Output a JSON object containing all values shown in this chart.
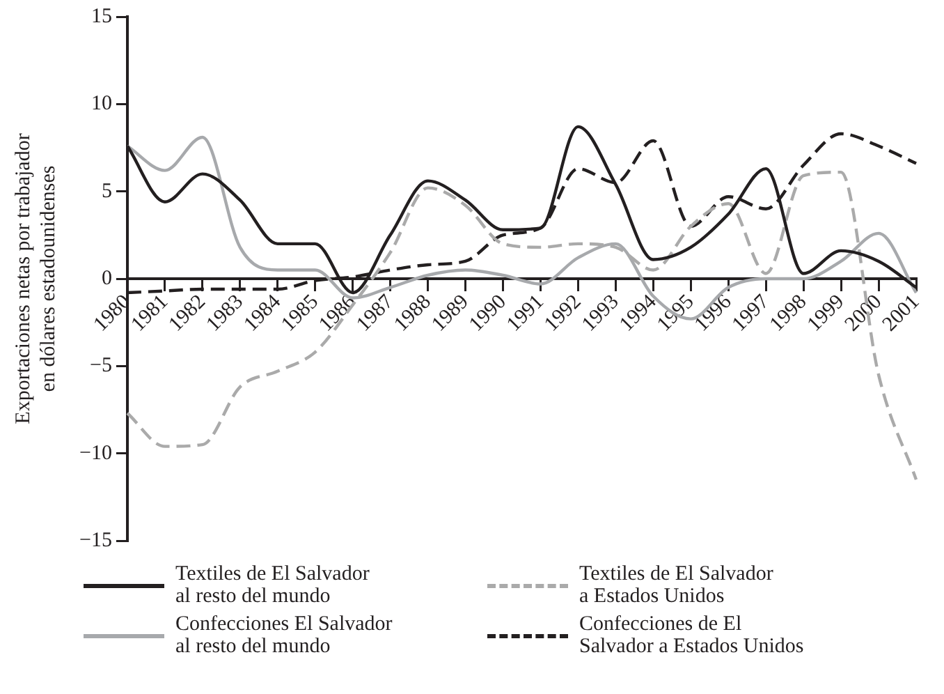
{
  "chart_data": {
    "type": "line",
    "ylabel": "Exportaciones netas por trabajador en dólares estadounidenses",
    "categories": [
      "1980",
      "1981",
      "1982",
      "1983",
      "1984",
      "1985",
      "1986",
      "1987",
      "1988",
      "1989",
      "1990",
      "1991",
      "1992",
      "1993",
      "1994",
      "1995",
      "1996",
      "1997",
      "1998",
      "1999",
      "2000",
      "2001"
    ],
    "series": [
      {
        "name": "Textiles de El Salvador al resto del mundo",
        "color": "#231f20",
        "line_style": "solid",
        "values": [
          7.6,
          4.4,
          6.0,
          4.5,
          2.0,
          2.0,
          -0.8,
          2.5,
          5.6,
          4.5,
          2.8,
          2.9,
          8.7,
          5.4,
          1.1,
          1.8,
          3.7,
          6.3,
          0.3,
          1.6,
          1.0,
          -0.5
        ]
      },
      {
        "name": "Textiles de El Salvador a Estados Unidos",
        "color": "#aaaaaa",
        "line_style": "dashed",
        "values": [
          -7.7,
          -9.6,
          -9.5,
          -6.2,
          -5.3,
          -4.2,
          -1.5,
          1.5,
          5.2,
          4.2,
          2.0,
          1.8,
          2.0,
          1.8,
          0.5,
          3.0,
          4.3,
          0.3,
          5.9,
          6.1,
          -5.5,
          -11.5
        ]
      },
      {
        "name": "Confecciones El Salvador al resto del mundo",
        "color": "#a7a9ac",
        "line_style": "solid",
        "values": [
          7.6,
          6.2,
          8.1,
          1.8,
          0.5,
          0.5,
          -1.1,
          -0.5,
          0.2,
          0.5,
          0.2,
          -0.3,
          1.2,
          2.0,
          -1.0,
          -2.3,
          -0.5,
          0,
          0,
          1.0,
          2.6,
          -0.8
        ]
      },
      {
        "name": "Confecciones de El Salvador a Estados Unidos",
        "color": "#231f20",
        "line_style": "dashed",
        "values": [
          -0.8,
          -0.7,
          -0.6,
          -0.6,
          -0.6,
          -0.1,
          0.1,
          0.5,
          0.8,
          1.0,
          2.5,
          2.9,
          6.3,
          5.5,
          7.9,
          3.0,
          4.7,
          4.0,
          6.5,
          8.3,
          7.6,
          6.6
        ]
      }
    ],
    "ylim": [
      -15,
      15
    ],
    "yticks": [
      -15,
      -10,
      -5,
      0,
      5,
      10,
      15
    ],
    "grid": false,
    "legend": "bottom",
    "marker": "none"
  }
}
